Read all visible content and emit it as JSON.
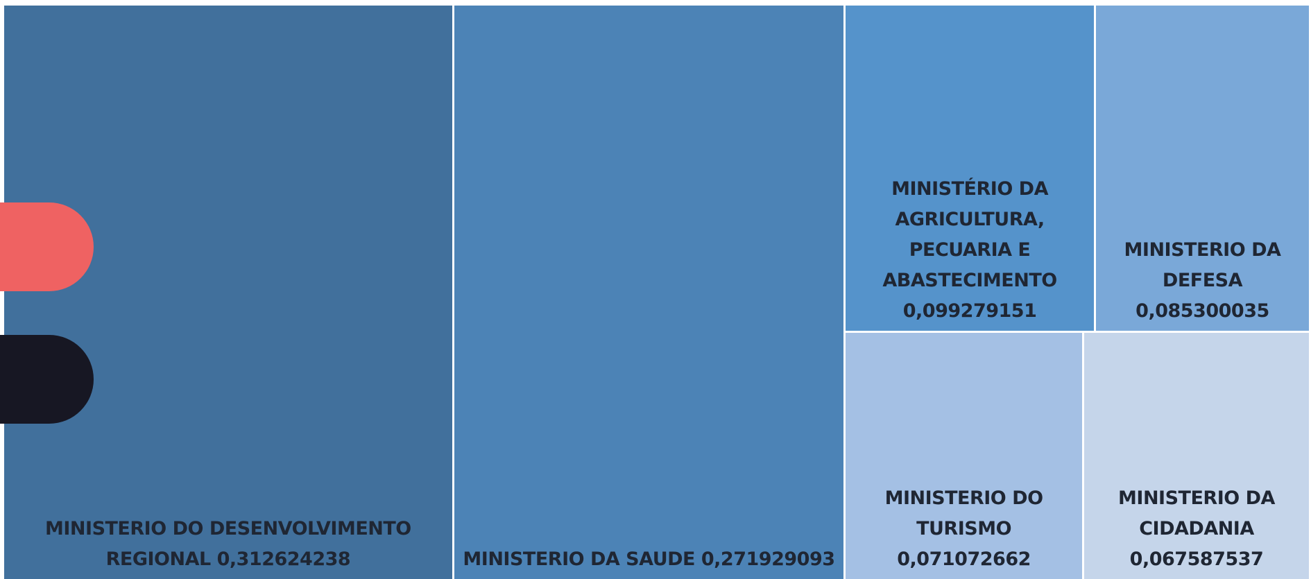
{
  "chart_data": {
    "type": "treemap",
    "categories": [
      "MINISTERIO DO DESENVOLVIMENTO REGIONAL",
      "MINISTERIO DA SAUDE",
      "MINISTÉRIO DA AGRICULTURA, PECUARIA E ABASTECIMENTO",
      "MINISTERIO DA DEFESA",
      "MINISTERIO DO TURISMO",
      "MINISTERIO DA CIDADANIA"
    ],
    "values": [
      0.312624238,
      0.271929093,
      0.099279151,
      0.085300035,
      0.071072662,
      0.067587537
    ],
    "value_labels": [
      "0,312624238",
      "0,271929093",
      "0,099279151",
      "0,085300035",
      "0,071072662",
      "0,067587537"
    ],
    "colors": [
      "#41709c",
      "#4c83b6",
      "#5593cb",
      "#7aa8d8",
      "#a4c0e4",
      "#c5d5ea"
    ]
  }
}
